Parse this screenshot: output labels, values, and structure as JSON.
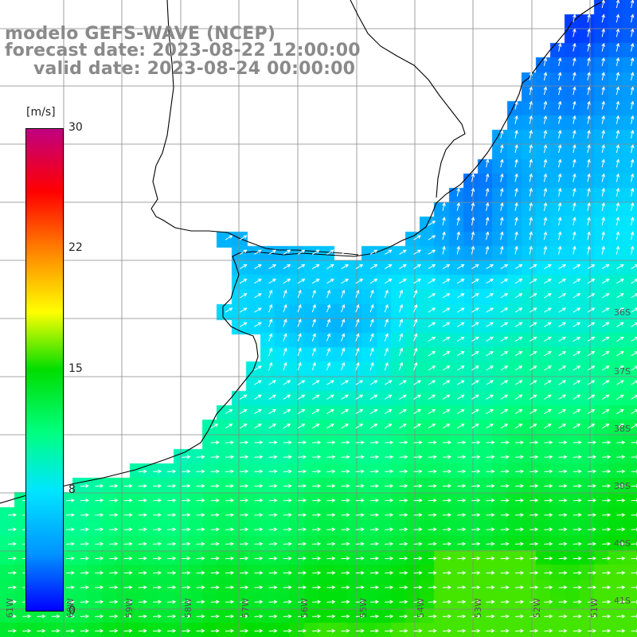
{
  "title": {
    "line1": "modelo GEFS-WAVE (NCEP)",
    "line2": "forecast date: 2023-08-22 12:00:00",
    "line3": "valid date: 2023-08-24 00:00:00"
  },
  "colorbar": {
    "unit": "[m/s]",
    "range": [
      0,
      30
    ],
    "ticks": [
      "30",
      "22",
      "15",
      "8",
      "0"
    ],
    "stops": [
      "#0000ff",
      "#0096ff",
      "#00e6ff",
      "#00ff80",
      "#00dd00",
      "#ffff00",
      "#ff8000",
      "#ff0000",
      "#c00080"
    ]
  },
  "map": {
    "lon_labels": [
      "61W",
      "60W",
      "59W",
      "58W",
      "57W",
      "56W",
      "55W",
      "54W",
      "53W",
      "52W",
      "51W"
    ],
    "lat_labels": [
      "36S",
      "37S",
      "38S",
      "39S",
      "40S",
      "41S"
    ],
    "land_color": "#ffffff",
    "coast_color": "#000000",
    "grid_color": "#888888",
    "arrow_color": "#ffffff"
  }
}
